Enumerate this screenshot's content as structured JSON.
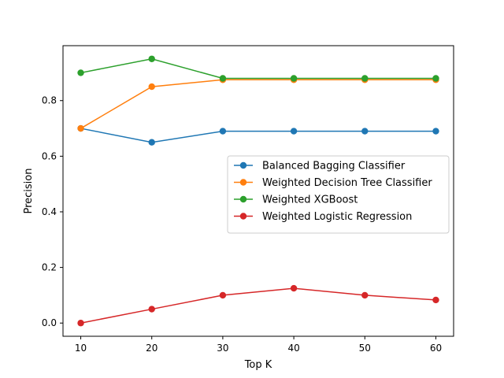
{
  "chart_data": {
    "type": "line",
    "title": "",
    "xlabel": "Top K",
    "ylabel": "Precision",
    "x": [
      10,
      20,
      30,
      40,
      50,
      60
    ],
    "xticks": [
      10,
      20,
      30,
      40,
      50,
      60
    ],
    "xtick_labels": [
      "10",
      "20",
      "30",
      "40",
      "50",
      "60"
    ],
    "yticks": [
      0.0,
      0.2,
      0.4,
      0.6,
      0.8
    ],
    "ytick_labels": [
      "0.0",
      "0.2",
      "0.4",
      "0.6",
      "0.8"
    ],
    "xlim": [
      7.5,
      62.5
    ],
    "ylim": [
      -0.0475,
      0.9975
    ],
    "grid": false,
    "legend_position": "center-right",
    "series": [
      {
        "name": "Balanced Bagging Classifier",
        "color": "#1f77b4",
        "values": [
          0.7,
          0.65,
          0.69,
          0.69,
          0.69,
          0.69
        ]
      },
      {
        "name": "Weighted Decision Tree Classifier",
        "color": "#ff7f0e",
        "values": [
          0.7,
          0.85,
          0.875,
          0.875,
          0.875,
          0.875
        ]
      },
      {
        "name": "Weighted XGBoost",
        "color": "#2ca02c",
        "values": [
          0.9,
          0.95,
          0.88,
          0.88,
          0.88,
          0.88
        ]
      },
      {
        "name": "Weighted Logistic Regression",
        "color": "#d62728",
        "values": [
          0.0,
          0.05,
          0.1,
          0.125,
          0.1,
          0.083
        ]
      }
    ]
  }
}
